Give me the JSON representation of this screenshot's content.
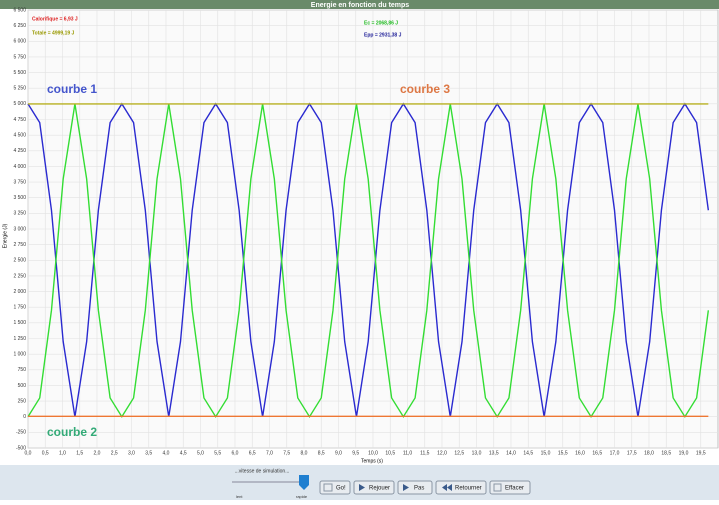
{
  "chart_data": {
    "type": "line",
    "title": "Energie en fonction du temps",
    "xlabel": "Temps (s)",
    "ylabel": "Energie (J)",
    "legend": [
      "Calorifique = 6,93 J",
      "Totale = 4999,19 J",
      "Ec = 2068,86 J",
      "Epp = 2931,38 J"
    ],
    "annotations": [
      "courbe 1",
      "courbe 2",
      "courbe 3"
    ],
    "grid": true,
    "xlim": [
      0,
      20
    ],
    "ylim": [
      -500,
      6500
    ],
    "x": [
      0,
      0.34,
      0.68,
      1.02,
      1.36,
      1.7,
      2.04,
      2.38,
      2.72,
      3.06,
      3.4,
      3.74,
      4.08,
      4.42,
      4.76,
      5.1,
      5.44,
      5.78,
      6.12,
      6.46,
      6.8,
      7.14,
      7.48,
      7.82,
      8.16,
      8.5,
      8.84,
      9.18,
      9.52,
      9.86,
      10.2,
      10.54,
      10.88,
      11.22,
      11.56,
      11.9,
      12.24,
      12.58,
      12.92,
      13.26,
      13.6,
      13.94,
      14.28,
      14.62,
      14.96,
      15.3,
      15.64,
      15.98,
      16.32,
      16.66,
      17,
      17.34,
      17.68,
      18.02,
      18.36,
      18.7,
      19.04,
      19.38,
      19.72
    ],
    "series": [
      {
        "name": "courbe 1",
        "color": "#2a2ad0",
        "values": [
          5000,
          4700,
          3300,
          1200,
          0,
          1200,
          3300,
          4700,
          5000,
          4700,
          3300,
          1200,
          0,
          1200,
          3300,
          4700,
          5000,
          4700,
          3300,
          1200,
          0,
          1200,
          3300,
          4700,
          5000,
          4700,
          3300,
          1200,
          0,
          1200,
          3300,
          4700,
          5000,
          4700,
          3300,
          1200,
          0,
          1200,
          3300,
          4700,
          5000,
          4700,
          3300,
          1200,
          0,
          1200,
          3300,
          4700,
          5000,
          4700,
          3300,
          1200,
          0,
          1200,
          3300,
          4700,
          5000,
          4700,
          3300
        ]
      },
      {
        "color": "#33dd33",
        "values": [
          0,
          300,
          1700,
          3800,
          5000,
          3800,
          1700,
          300,
          0,
          300,
          1700,
          3800,
          5000,
          3800,
          1700,
          300,
          0,
          300,
          1700,
          3800,
          5000,
          3800,
          1700,
          300,
          0,
          300,
          1700,
          3800,
          5000,
          3800,
          1700,
          300,
          0,
          300,
          1700,
          3800,
          5000,
          3800,
          1700,
          300,
          0,
          300,
          1700,
          3800,
          5000,
          3800,
          1700,
          300,
          0,
          300,
          1700,
          3800,
          5000,
          3800,
          1700,
          300,
          0,
          300,
          1700
        ]
      },
      {
        "name": "courbe 2",
        "color": "#ee7733",
        "x": [
          0,
          19.72
        ],
        "values": [
          6.93,
          6.93
        ]
      },
      {
        "name": "courbe 3",
        "color": "#b8b020",
        "x": [
          0,
          19.72
        ],
        "values": [
          4999.19,
          4999.19
        ]
      }
    ],
    "yticks": [
      -500,
      -250,
      0,
      250,
      500,
      750,
      {
        "value": 1000,
        "label": "1 000"
      },
      {
        "value": 1250,
        "label": "1 250"
      },
      {
        "value": 1500,
        "label": "1 500"
      },
      {
        "value": 1750,
        "label": "1 750"
      },
      {
        "value": 2000,
        "label": "2 000"
      },
      {
        "value": 2250,
        "label": "2 250"
      },
      {
        "value": 2500,
        "label": "2 500"
      },
      {
        "value": 2750,
        "label": "2 750"
      },
      {
        "value": 3000,
        "label": "3 000"
      },
      {
        "value": 3250,
        "label": "3 250"
      },
      {
        "value": 3500,
        "label": "3 500"
      },
      {
        "value": 3750,
        "label": "3 750"
      },
      {
        "value": 4000,
        "label": "4 000"
      },
      {
        "value": 4250,
        "label": "4 250"
      },
      {
        "value": 4500,
        "label": "4 500"
      },
      {
        "value": 4750,
        "label": "4 750"
      },
      {
        "value": 5000,
        "label": "5 000"
      },
      {
        "value": 5250,
        "label": "5 250"
      },
      {
        "value": 5500,
        "label": "5 500"
      },
      {
        "value": 5750,
        "label": "5 750"
      },
      {
        "value": 6000,
        "label": "6 000"
      },
      {
        "value": 6250,
        "label": "6 250"
      },
      {
        "value": 6500,
        "label": "6 500"
      }
    ],
    "xticks": [
      {
        "value": 0,
        "label": "0,0"
      },
      {
        "value": 0.5,
        "label": "0,5"
      },
      {
        "value": 1,
        "label": "1,0"
      },
      {
        "value": 1.5,
        "label": "1,5"
      },
      {
        "value": 2,
        "label": "2,0"
      },
      {
        "value": 2.5,
        "label": "2,5"
      },
      {
        "value": 3,
        "label": "3,0"
      },
      {
        "value": 3.5,
        "label": "3,5"
      },
      {
        "value": 4,
        "label": "4,0"
      },
      {
        "value": 4.5,
        "label": "4,5"
      },
      {
        "value": 5,
        "label": "5,0"
      },
      {
        "value": 5.5,
        "label": "5,5"
      },
      {
        "value": 6,
        "label": "6,0"
      },
      {
        "value": 6.5,
        "label": "6,5"
      },
      {
        "value": 7,
        "label": "7,0"
      },
      {
        "value": 7.5,
        "label": "7,5"
      },
      {
        "value": 8,
        "label": "8,0"
      },
      {
        "value": 8.5,
        "label": "8,5"
      },
      {
        "value": 9,
        "label": "9,0"
      },
      {
        "value": 9.5,
        "label": "9,5"
      },
      {
        "value": 10,
        "label": "10,0"
      },
      {
        "value": 10.5,
        "label": "10,5"
      },
      {
        "value": 11,
        "label": "11,0"
      },
      {
        "value": 11.5,
        "label": "11,5"
      },
      {
        "value": 12,
        "label": "12,0"
      },
      {
        "value": 12.5,
        "label": "12,5"
      },
      {
        "value": 13,
        "label": "13,0"
      },
      {
        "value": 13.5,
        "label": "13,5"
      },
      {
        "value": 14,
        "label": "14,0"
      },
      {
        "value": 14.5,
        "label": "14,5"
      },
      {
        "value": 15,
        "label": "15,0"
      },
      {
        "value": 15.5,
        "label": "15,5"
      },
      {
        "value": 16,
        "label": "16,0"
      },
      {
        "value": 16.5,
        "label": "16,5"
      },
      {
        "value": 17,
        "label": "17,0"
      },
      {
        "value": 17.5,
        "label": "17,5"
      },
      {
        "value": 18,
        "label": "18,0"
      },
      {
        "value": 18.5,
        "label": "18,5"
      },
      {
        "value": 19,
        "label": "19,0"
      },
      {
        "value": 19.5,
        "label": "19,5"
      }
    ]
  },
  "toolbar": {
    "speed_label": "...vitesse de simulation...",
    "slow": "lent",
    "fast": "rapide",
    "buttons": [
      "Go!",
      "Rejouer",
      "Pas",
      "Retourner",
      "Effacer"
    ]
  }
}
